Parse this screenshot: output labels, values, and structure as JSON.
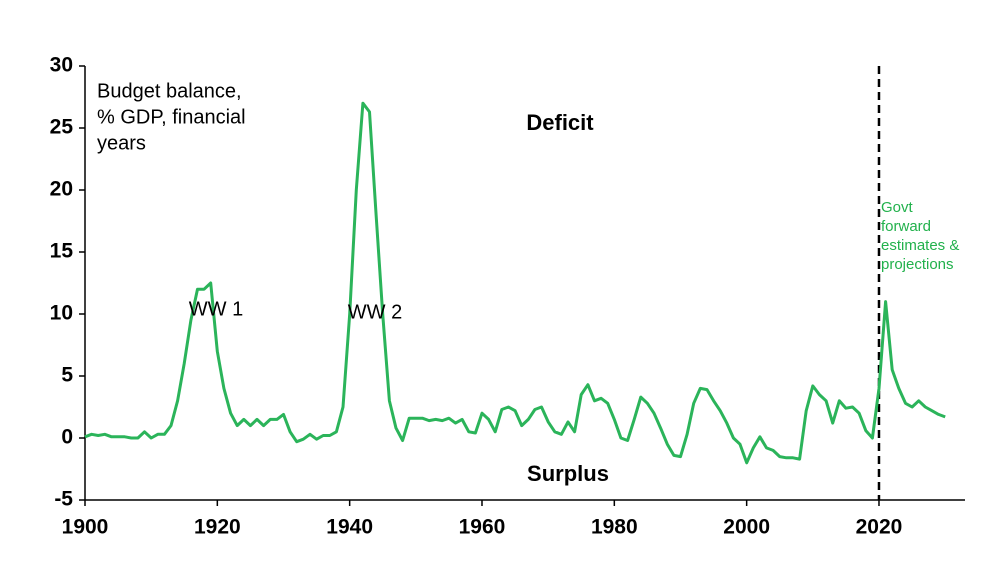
{
  "chart_data": {
    "type": "line",
    "color": "#2bb45a",
    "annotations": {
      "label_lines": [
        "Budget balance,",
        "% GDP, financial",
        "years"
      ],
      "deficit": "Deficit",
      "surplus": "Surplus",
      "ww1": "WW 1",
      "ww2": "WW 2",
      "forward_lines": [
        "Govt",
        "forward",
        "estimates &",
        "projections"
      ]
    },
    "vline": 2020,
    "xlim": [
      1900,
      2033
    ],
    "xticks": [
      1900,
      1920,
      1940,
      1960,
      1980,
      2000,
      2020
    ],
    "ylim": [
      -5,
      30
    ],
    "yticks": [
      -5,
      0,
      5,
      10,
      15,
      20,
      25,
      30
    ],
    "x": [
      1900,
      1901,
      1902,
      1903,
      1904,
      1905,
      1906,
      1907,
      1908,
      1909,
      1910,
      1911,
      1912,
      1913,
      1914,
      1915,
      1916,
      1917,
      1918,
      1919,
      1920,
      1921,
      1922,
      1923,
      1924,
      1925,
      1926,
      1927,
      1928,
      1929,
      1930,
      1931,
      1932,
      1933,
      1934,
      1935,
      1936,
      1937,
      1938,
      1939,
      1940,
      1941,
      1942,
      1943,
      1944,
      1945,
      1946,
      1947,
      1948,
      1949,
      1950,
      1951,
      1952,
      1953,
      1954,
      1955,
      1956,
      1957,
      1958,
      1959,
      1960,
      1961,
      1962,
      1963,
      1964,
      1965,
      1966,
      1967,
      1968,
      1969,
      1970,
      1971,
      1972,
      1973,
      1974,
      1975,
      1976,
      1977,
      1978,
      1979,
      1980,
      1981,
      1982,
      1983,
      1984,
      1985,
      1986,
      1987,
      1988,
      1989,
      1990,
      1991,
      1992,
      1993,
      1994,
      1995,
      1996,
      1997,
      1998,
      1999,
      2000,
      2001,
      2002,
      2003,
      2004,
      2005,
      2006,
      2007,
      2008,
      2009,
      2010,
      2011,
      2012,
      2013,
      2014,
      2015,
      2016,
      2017,
      2018,
      2019,
      2020,
      2021,
      2022,
      2023,
      2024,
      2025,
      2026,
      2027,
      2028,
      2029,
      2030
    ],
    "values": [
      0.1,
      0.3,
      0.2,
      0.3,
      0.1,
      0.1,
      0.1,
      0,
      0,
      0.5,
      0,
      0.3,
      0.3,
      1,
      3,
      6,
      9.5,
      12,
      12,
      12.5,
      7,
      4,
      2,
      1,
      1.5,
      1,
      1.5,
      1,
      1.5,
      1.5,
      1.9,
      0.5,
      -0.3,
      -0.1,
      0.3,
      -0.1,
      0.2,
      0.2,
      0.5,
      2.5,
      10,
      20,
      27,
      26.3,
      18,
      10,
      3,
      0.8,
      -0.2,
      1.6,
      1.6,
      1.6,
      1.4,
      1.5,
      1.4,
      1.6,
      1.2,
      1.5,
      0.5,
      0.4,
      2,
      1.5,
      0.5,
      2.3,
      2.5,
      2.2,
      1,
      1.5,
      2.3,
      2.5,
      1.3,
      0.5,
      0.3,
      1.3,
      0.5,
      3.5,
      4.3,
      3,
      3.2,
      2.8,
      1.5,
      0,
      -0.2,
      1.5,
      3.3,
      2.8,
      2,
      0.8,
      -0.5,
      -1.4,
      -1.5,
      0.3,
      2.8,
      4,
      3.9,
      3,
      2.2,
      1.2,
      0,
      -0.5,
      -2,
      -0.8,
      0.1,
      -0.8,
      -1,
      -1.5,
      -1.6,
      -1.6,
      -1.7,
      2.2,
      4.2,
      3.5,
      3,
      1.2,
      3,
      2.4,
      2.5,
      2,
      0.6,
      0,
      4,
      11,
      5.5,
      4,
      2.8,
      2.5,
      3,
      2.5,
      2.2,
      1.9,
      1.7
    ]
  }
}
